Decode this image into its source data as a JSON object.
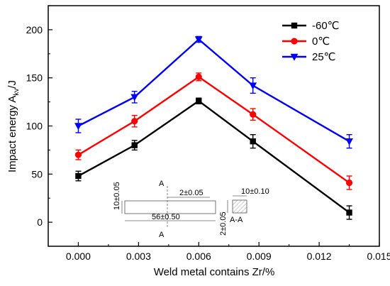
{
  "chart_data": {
    "type": "line",
    "xlabel": "Weld metal contains Zr/%",
    "ylabel": "Impact energy A",
    "ylabel_subscript": "kv",
    "ylabel_suffix": "/J",
    "xlim": [
      -0.0015,
      0.015
    ],
    "ylim": [
      -25,
      225
    ],
    "x_ticks": [
      0.0,
      0.003,
      0.006,
      0.009,
      0.012,
      0.015
    ],
    "x_tick_labels": [
      "0.000",
      "0.003",
      "0.006",
      "0.009",
      "0.012",
      "0.015"
    ],
    "y_ticks": [
      0,
      50,
      100,
      150,
      200
    ],
    "y_tick_labels": [
      "0",
      "50",
      "100",
      "150",
      "200"
    ],
    "legend_position": "top-right",
    "x": [
      0.0,
      0.0028,
      0.006,
      0.0087,
      0.0135
    ],
    "series": [
      {
        "name": "-60℃",
        "color": "#000000",
        "marker": "square",
        "values": [
          48,
          80,
          126,
          84,
          10
        ],
        "errors": [
          5,
          5,
          3,
          7,
          7
        ]
      },
      {
        "name": "0℃",
        "color": "#ff0000",
        "marker": "circle",
        "values": [
          70,
          105,
          151,
          112,
          41
        ],
        "errors": [
          5,
          6,
          4,
          6,
          7
        ]
      },
      {
        "name": "25℃",
        "color": "#0000ff",
        "marker": "triangle-down",
        "values": [
          100,
          130,
          190,
          142,
          84
        ],
        "errors": [
          7,
          6,
          3,
          8,
          7
        ]
      }
    ]
  },
  "inset": {
    "label_a_top": "A",
    "label_a_bottom": "A",
    "notch_dim": "2±0.05",
    "length_dim": "56±0.50",
    "height_dim": "10±0.05",
    "section_width_dim": "10±0.10",
    "section_height_dim": "2±0.05",
    "section_label": "A-A"
  }
}
